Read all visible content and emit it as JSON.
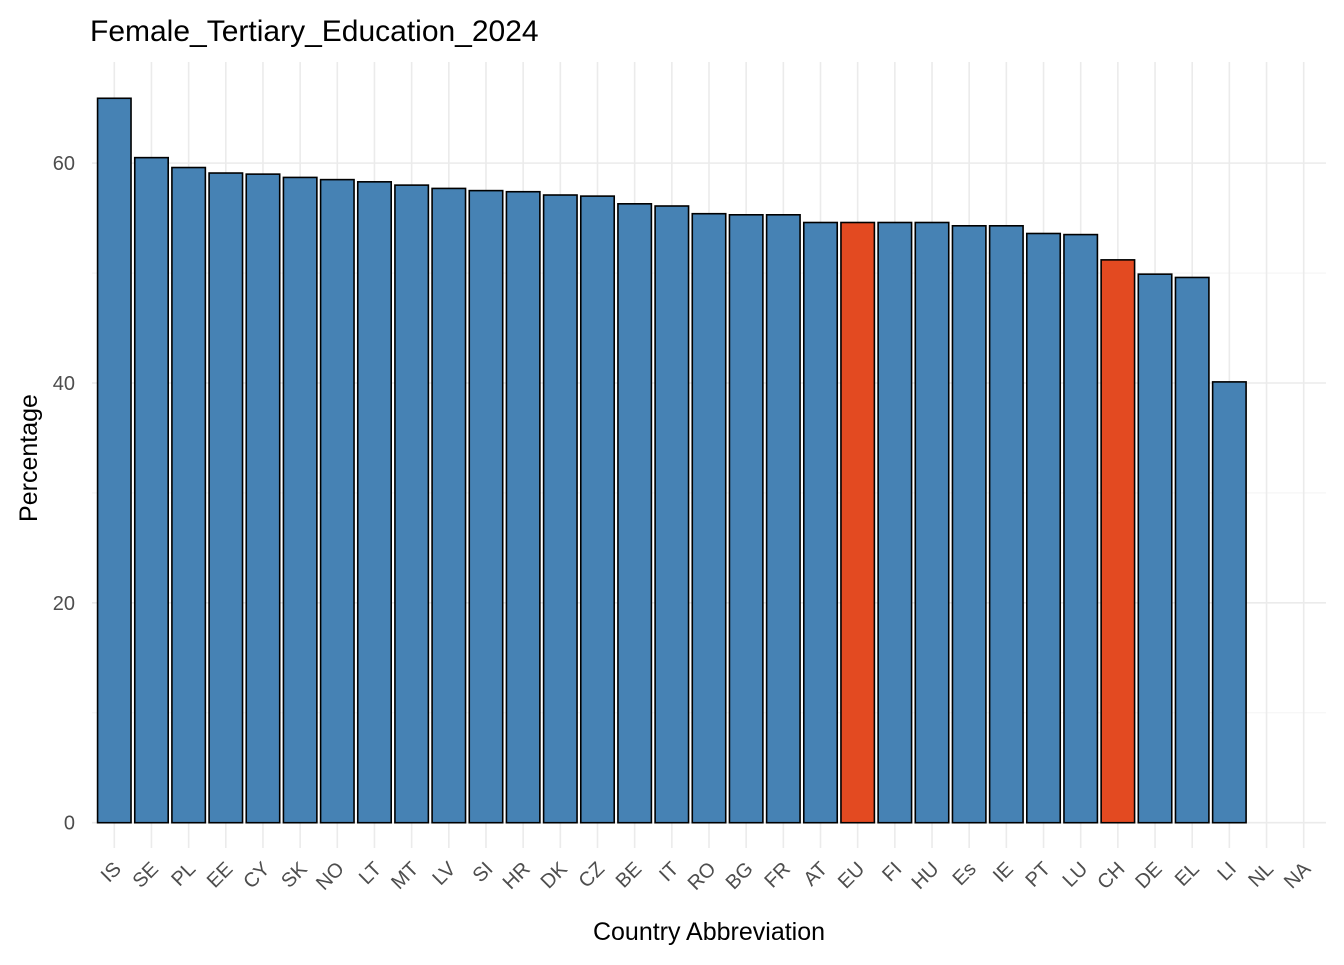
{
  "chart_data": {
    "type": "bar",
    "title": "Female_Tertiary_Education_2024",
    "xlabel": "Country Abbreviation",
    "ylabel": "Percentage",
    "categories": [
      "IS",
      "SE",
      "PL",
      "EE",
      "CY",
      "SK",
      "NO",
      "LT",
      "MT",
      "LV",
      "SI",
      "HR",
      "DK",
      "CZ",
      "BE",
      "IT",
      "RO",
      "BG",
      "FR",
      "AT",
      "EU",
      "FI",
      "HU",
      "Es",
      "IE",
      "PT",
      "LU",
      "CH",
      "DE",
      "EL",
      "LI",
      "NL",
      "NA"
    ],
    "values": [
      65.9,
      60.5,
      59.6,
      59.1,
      59.0,
      58.7,
      58.5,
      58.3,
      58.0,
      57.7,
      57.5,
      57.4,
      57.1,
      57.0,
      56.3,
      56.1,
      55.4,
      55.3,
      55.3,
      54.6,
      54.6,
      54.6,
      54.6,
      54.3,
      54.3,
      53.6,
      53.5,
      51.2,
      49.9,
      49.6,
      40.1,
      null,
      null
    ],
    "highlight": [
      "EU",
      "CH"
    ],
    "ylim": [
      -2.3,
      69.2
    ],
    "yticks": [
      0,
      20,
      40,
      60
    ],
    "grid": true,
    "legend": "none",
    "colors": {
      "bar": "#4682b4",
      "highlight": "#e34a21",
      "bar_outline": "#000000",
      "grid_major": "#ebebeb",
      "grid_minor": "#f2f2f2"
    }
  }
}
